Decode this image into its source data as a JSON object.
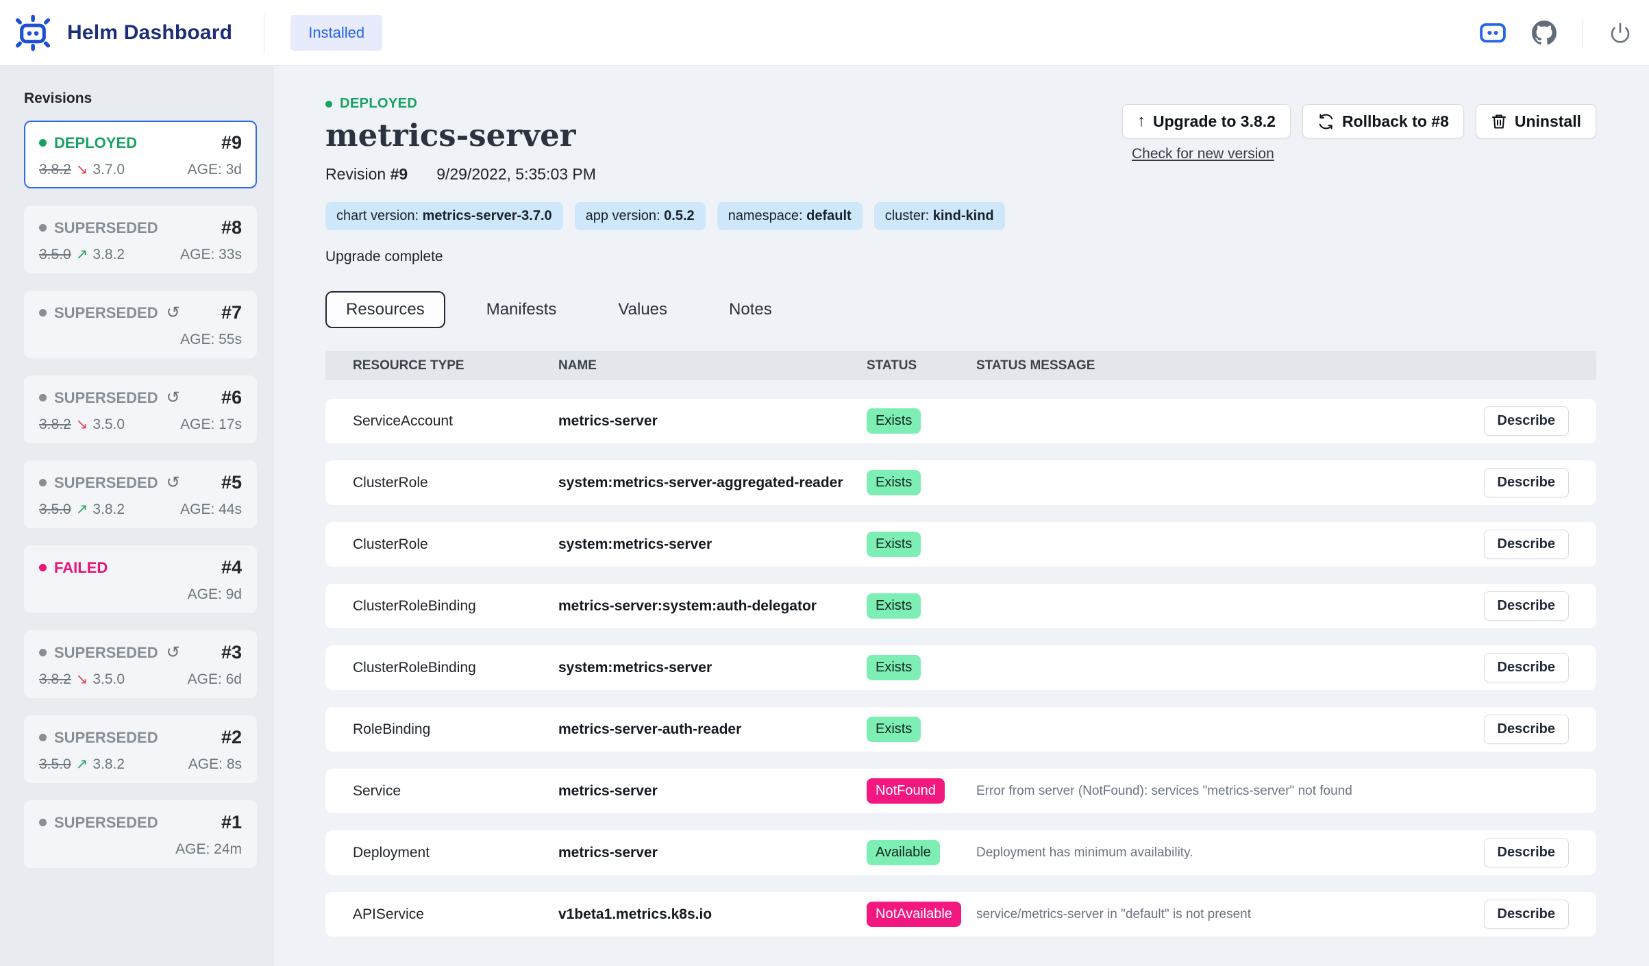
{
  "colors": {
    "accent_blue": "#2563eb",
    "brand_navy": "#1c2e7a",
    "logo_blue": "#1d4ed8",
    "status_green": "#17a263",
    "status_gray": "#878e96",
    "status_pink": "#ee1379",
    "arrow_green": "#27a567",
    "arrow_red": "#e0485a",
    "badge_ok_bg": "#7deeb4",
    "badge_err_bg": "#f31880",
    "chip_blue": "#cfe7fb"
  },
  "icons": {
    "reconfigure": "↺",
    "arrow_up": "↗",
    "arrow_down": "↘",
    "upgrade_arrow": "↑"
  },
  "header": {
    "app_title": "Helm Dashboard",
    "nav_installed": "Installed"
  },
  "sidebar": {
    "heading": "Revisions",
    "revisions": [
      {
        "status": "DEPLOYED",
        "number": "#9",
        "selected": true,
        "reconfigured": false,
        "old_version": "3.8.2",
        "new_version": "3.7.0",
        "direction": "down",
        "age": "AGE: 3d"
      },
      {
        "status": "SUPERSEDED",
        "number": "#8",
        "selected": false,
        "reconfigured": false,
        "old_version": "3.5.0",
        "new_version": "3.8.2",
        "direction": "up",
        "age": "AGE: 33s"
      },
      {
        "status": "SUPERSEDED",
        "number": "#7",
        "selected": false,
        "reconfigured": true,
        "age": "AGE: 55s"
      },
      {
        "status": "SUPERSEDED",
        "number": "#6",
        "selected": false,
        "reconfigured": true,
        "old_version": "3.8.2",
        "new_version": "3.5.0",
        "direction": "down",
        "age": "AGE: 17s"
      },
      {
        "status": "SUPERSEDED",
        "number": "#5",
        "selected": false,
        "reconfigured": true,
        "old_version": "3.5.0",
        "new_version": "3.8.2",
        "direction": "up",
        "age": "AGE: 44s"
      },
      {
        "status": "FAILED",
        "number": "#4",
        "selected": false,
        "reconfigured": false,
        "age": "AGE: 9d"
      },
      {
        "status": "SUPERSEDED",
        "number": "#3",
        "selected": false,
        "reconfigured": true,
        "old_version": "3.8.2",
        "new_version": "3.5.0",
        "direction": "down",
        "age": "AGE: 6d"
      },
      {
        "status": "SUPERSEDED",
        "number": "#2",
        "selected": false,
        "reconfigured": false,
        "old_version": "3.5.0",
        "new_version": "3.8.2",
        "direction": "up",
        "age": "AGE: 8s"
      },
      {
        "status": "SUPERSEDED",
        "number": "#1",
        "selected": false,
        "reconfigured": false,
        "age": "AGE: 24m"
      }
    ]
  },
  "release": {
    "status_label": "DEPLOYED",
    "name": "metrics-server",
    "revision_label": "Revision",
    "revision_number": "#9",
    "date": "9/29/2022, 5:35:03 PM",
    "badges": [
      {
        "label": "chart version: ",
        "value": "metrics-server-3.7.0"
      },
      {
        "label": "app version: ",
        "value": "0.5.2"
      },
      {
        "label": "namespace: ",
        "value": "default"
      },
      {
        "label": "cluster: ",
        "value": "kind-kind"
      }
    ],
    "description": "Upgrade complete"
  },
  "actions": {
    "upgrade_label": "Upgrade to 3.8.2",
    "rollback_label": "Rollback to #8",
    "uninstall_label": "Uninstall",
    "check_link": "Check for new version"
  },
  "tabs": [
    {
      "label": "Resources",
      "active": true
    },
    {
      "label": "Manifests",
      "active": false
    },
    {
      "label": "Values",
      "active": false
    },
    {
      "label": "Notes",
      "active": false
    }
  ],
  "table": {
    "headers": [
      "RESOURCE TYPE",
      "NAME",
      "STATUS",
      "STATUS MESSAGE"
    ],
    "describe_label": "Describe",
    "rows": [
      {
        "type": "ServiceAccount",
        "name": "metrics-server",
        "status": "Exists",
        "kind": "ok",
        "message": "",
        "describe": true
      },
      {
        "type": "ClusterRole",
        "name": "system:metrics-server-aggregated-reader",
        "status": "Exists",
        "kind": "ok",
        "message": "",
        "describe": true
      },
      {
        "type": "ClusterRole",
        "name": "system:metrics-server",
        "status": "Exists",
        "kind": "ok",
        "message": "",
        "describe": true
      },
      {
        "type": "ClusterRoleBinding",
        "name": "metrics-server:system:auth-delegator",
        "status": "Exists",
        "kind": "ok",
        "message": "",
        "describe": true
      },
      {
        "type": "ClusterRoleBinding",
        "name": "system:metrics-server",
        "status": "Exists",
        "kind": "ok",
        "message": "",
        "describe": true
      },
      {
        "type": "RoleBinding",
        "name": "metrics-server-auth-reader",
        "status": "Exists",
        "kind": "ok",
        "message": "",
        "describe": true
      },
      {
        "type": "Service",
        "name": "metrics-server",
        "status": "NotFound",
        "kind": "error",
        "message": "Error from server (NotFound): services \"metrics-server\" not found",
        "describe": false
      },
      {
        "type": "Deployment",
        "name": "metrics-server",
        "status": "Available",
        "kind": "ok",
        "message": "Deployment has minimum availability.",
        "describe": true
      },
      {
        "type": "APIService",
        "name": "v1beta1.metrics.k8s.io",
        "status": "NotAvailable",
        "kind": "error",
        "message": "service/metrics-server in \"default\" is not present",
        "describe": true
      }
    ]
  }
}
